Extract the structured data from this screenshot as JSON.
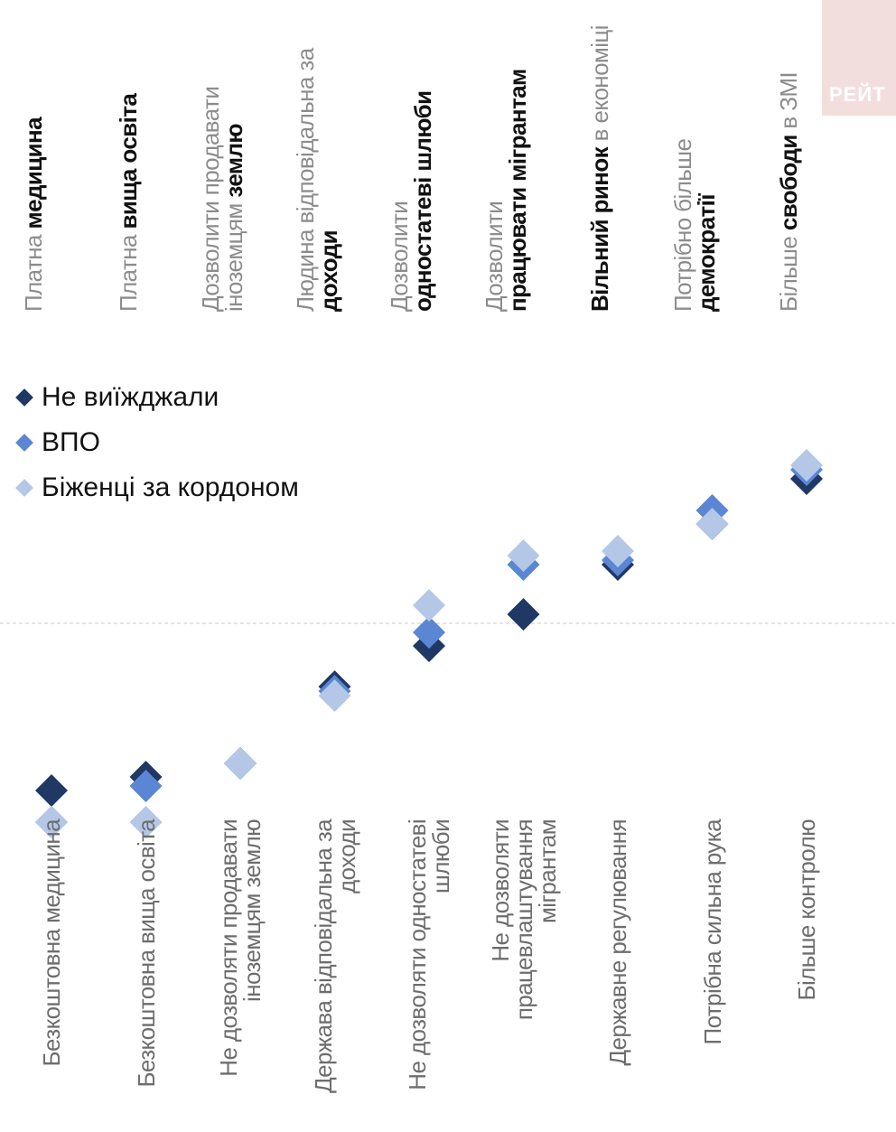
{
  "badge": {
    "text": "РЕЙТ"
  },
  "chart_data": {
    "type": "scatter",
    "top_labels": [
      [
        {
          "t": "Платна ",
          "b": false
        },
        {
          "t": "медицина",
          "b": true
        }
      ],
      [
        {
          "t": "Платна ",
          "b": false
        },
        {
          "t": "вища освіта",
          "b": true
        }
      ],
      [
        {
          "t": "Дозволити продавати",
          "b": false
        },
        {
          "br": true
        },
        {
          "t": "іноземцям ",
          "b": false
        },
        {
          "t": "землю",
          "b": true
        }
      ],
      [
        {
          "t": "Людина відповідальна за",
          "b": false
        },
        {
          "br": true
        },
        {
          "t": "доходи",
          "b": true
        }
      ],
      [
        {
          "t": "Дозволити",
          "b": false
        },
        {
          "br": true
        },
        {
          "t": "одностатеві шлюби",
          "b": true
        }
      ],
      [
        {
          "t": "Дозволити",
          "b": false
        },
        {
          "br": true
        },
        {
          "t": "працювати мігрантам",
          "b": true
        }
      ],
      [
        {
          "t": "Вільний ринок",
          "b": true
        },
        {
          "t": " в економіці",
          "b": false
        }
      ],
      [
        {
          "t": "Потрібно більше",
          "b": false
        },
        {
          "br": true
        },
        {
          "t": "демократії",
          "b": true
        }
      ],
      [
        {
          "t": "Більше ",
          "b": false
        },
        {
          "t": "свободи",
          "b": true
        },
        {
          "t": " в ЗМІ",
          "b": false
        }
      ]
    ],
    "bottom_labels": [
      [
        "Безкоштовна  медицина"
      ],
      [
        "Безкоштовна вища освіта"
      ],
      [
        "Не дозволяти продавати",
        "іноземцям землю"
      ],
      [
        "Держава відповідальна за",
        "доходи"
      ],
      [
        "Не дозволяти одностатеві",
        "шлюби"
      ],
      [
        "Не дозволяти",
        "працевлаштування",
        "мігрантам"
      ],
      [
        "Державне регулювання"
      ],
      [
        "Потрібна сильна рука"
      ],
      [
        "Більше контролю"
      ]
    ],
    "series": [
      {
        "name": "Не виїжджали",
        "color": "#1f3864",
        "values": [
          2.3,
          2.6,
          2.9,
          4.6,
          5.5,
          6.2,
          7.3,
          8.2,
          9.2
        ]
      },
      {
        "name": "ВПО",
        "color": "#5b86d4",
        "values": [
          1.6,
          2.4,
          2.9,
          4.5,
          5.8,
          7.3,
          7.4,
          8.5,
          9.4
        ]
      },
      {
        "name": "Біженці за кордоном",
        "color": "#b4c7e7",
        "values": [
          1.6,
          1.6,
          2.9,
          4.4,
          6.4,
          7.5,
          7.6,
          8.2,
          9.5
        ]
      }
    ],
    "ylim": [
      0,
      12
    ]
  }
}
